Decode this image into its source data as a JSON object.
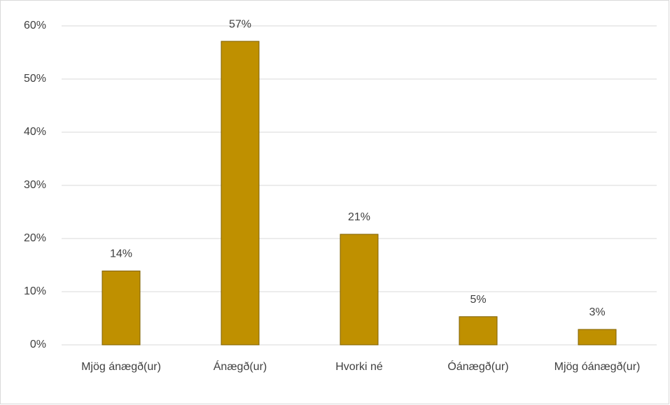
{
  "chart_data": {
    "type": "bar",
    "categories": [
      "Mjög ánægð(ur)",
      "Ánægð(ur)",
      "Hvorki né",
      "Óánægð(ur)",
      "Mjög óánægð(ur)"
    ],
    "values": [
      13.9,
      57.1,
      20.8,
      5.3,
      2.9
    ],
    "value_labels": [
      "14%",
      "57%",
      "21%",
      "5%",
      "3%"
    ],
    "color": "#bf9000",
    "ylim": [
      0,
      60
    ],
    "yticks": [
      {
        "value": 0,
        "label": "0%"
      },
      {
        "value": 10,
        "label": "10%"
      },
      {
        "value": 20,
        "label": "20%"
      },
      {
        "value": 30,
        "label": "30%"
      },
      {
        "value": 40,
        "label": "40%"
      },
      {
        "value": 50,
        "label": "50%"
      },
      {
        "value": 60,
        "label": "60%"
      }
    ],
    "grid": true
  }
}
